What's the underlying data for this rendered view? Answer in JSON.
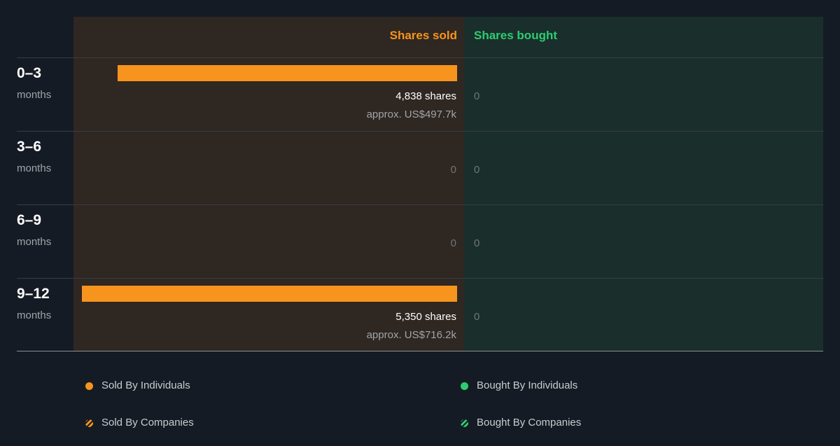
{
  "header": {
    "sold_label": "Shares sold",
    "bought_label": "Shares bought"
  },
  "colors": {
    "sold": "#f7941d",
    "bought": "#2ecc71",
    "sold_panel": "#2f2721",
    "bought_panel": "#1a2e2c",
    "background": "#151b24"
  },
  "rows": [
    {
      "period": "0–3",
      "unit": "months",
      "sold_shares": 4838,
      "sold_shares_label": "4,838 shares",
      "sold_value_label": "approx. US$497.7k",
      "bought_label": "0"
    },
    {
      "period": "3–6",
      "unit": "months",
      "sold_shares": 0,
      "sold_zero_label": "0",
      "bought_label": "0"
    },
    {
      "period": "6–9",
      "unit": "months",
      "sold_shares": 0,
      "sold_zero_label": "0",
      "bought_label": "0"
    },
    {
      "period": "9–12",
      "unit": "months",
      "sold_shares": 5350,
      "sold_shares_label": "5,350 shares",
      "sold_value_label": "approx. US$716.2k",
      "bought_label": "0"
    }
  ],
  "legend": {
    "sold_individuals": "Sold By Individuals",
    "bought_individuals": "Bought By Individuals",
    "sold_companies": "Sold By Companies",
    "bought_companies": "Bought By Companies"
  },
  "chart_data": {
    "type": "bar",
    "orientation": "horizontal",
    "categories": [
      "0–3 months",
      "3–6 months",
      "6–9 months",
      "9–12 months"
    ],
    "series": [
      {
        "name": "Shares sold",
        "values": [
          4838,
          0,
          0,
          5350
        ],
        "value_labels": [
          "approx. US$497.7k",
          "",
          "",
          "approx. US$716.2k"
        ]
      },
      {
        "name": "Shares bought",
        "values": [
          0,
          0,
          0,
          0
        ]
      }
    ],
    "legend": [
      "Sold By Individuals",
      "Bought By Individuals",
      "Sold By Companies",
      "Bought By Companies"
    ],
    "legend_position": "bottom"
  }
}
